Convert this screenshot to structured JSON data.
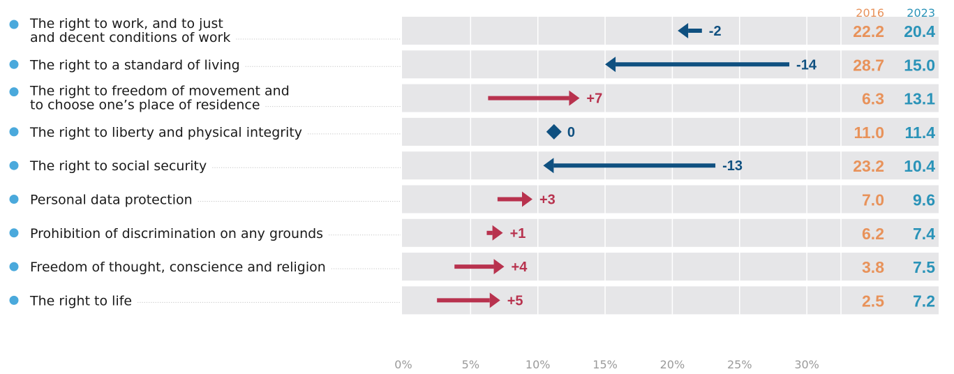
{
  "colors": {
    "year_2016": "#e8925a",
    "year_2023": "#2a93b8",
    "increase": "#b8324e",
    "decrease": "#0f5080",
    "row_band": "#e6e6e8",
    "bullet": "#4aa9dc",
    "leader": "#c4c4c4"
  },
  "chart_data": {
    "type": "arrow",
    "columns": [
      "2016",
      "2023"
    ],
    "x_ticks": [
      "0%",
      "5%",
      "10%",
      "15%",
      "20%",
      "25%",
      "30%"
    ],
    "xlim": [
      0,
      35
    ],
    "grid": true,
    "rows": [
      {
        "lines": [
          "The right to work, and to just",
          "and decent conditions of work"
        ],
        "v2016": 22.2,
        "v2023": 20.4,
        "label_2016": "22.2",
        "label_2023": "20.4",
        "delta": "-2"
      },
      {
        "lines": [
          "The right to a standard of living"
        ],
        "v2016": 28.7,
        "v2023": 15.0,
        "label_2016": "28.7",
        "label_2023": "15.0",
        "delta": "-14"
      },
      {
        "lines": [
          "The right to freedom of movement and",
          "to choose one’s place of residence"
        ],
        "v2016": 6.3,
        "v2023": 13.1,
        "label_2016": "6.3",
        "label_2023": "13.1",
        "delta": "+7"
      },
      {
        "lines": [
          "The right to liberty and physical integrity"
        ],
        "v2016": 11.0,
        "v2023": 11.4,
        "label_2016": "11.0",
        "label_2023": "11.4",
        "delta": "0"
      },
      {
        "lines": [
          "The right to social security"
        ],
        "v2016": 23.2,
        "v2023": 10.4,
        "label_2016": "23.2",
        "label_2023": "10.4",
        "delta": "-13"
      },
      {
        "lines": [
          "Personal data protection"
        ],
        "v2016": 7.0,
        "v2023": 9.6,
        "label_2016": "7.0",
        "label_2023": "9.6",
        "delta": "+3"
      },
      {
        "lines": [
          "Prohibition of discrimination on any grounds"
        ],
        "v2016": 6.2,
        "v2023": 7.4,
        "label_2016": "6.2",
        "label_2023": "7.4",
        "delta": "+1"
      },
      {
        "lines": [
          "Freedom of thought, conscience and religion"
        ],
        "v2016": 3.8,
        "v2023": 7.5,
        "label_2016": "3.8",
        "label_2023": "7.5",
        "delta": "+4"
      },
      {
        "lines": [
          "The right to life"
        ],
        "v2016": 2.5,
        "v2023": 7.2,
        "label_2016": "2.5",
        "label_2023": "7.2",
        "delta": "+5"
      }
    ]
  }
}
